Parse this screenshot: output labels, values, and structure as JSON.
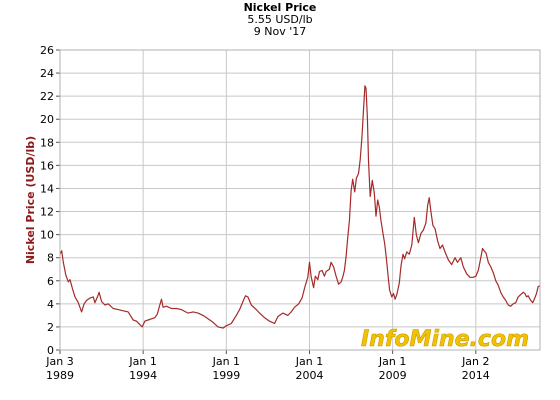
{
  "header": {
    "title": "Nickel Price",
    "subtitle": "5.55 USD/lb",
    "date": "9 Nov '17"
  },
  "watermark": "InfoMine.com",
  "colors": {
    "line": "#a52a2a",
    "grid": "#c8c8c8",
    "axis_label": "#8b1a1a",
    "watermark": "#f2c200"
  },
  "chart_data": {
    "type": "line",
    "title": "Nickel Price",
    "subtitle": "5.55 USD/lb",
    "ylabel": "Nickel Price (USD/lb)",
    "xlabel": "",
    "ylim": [
      0,
      26
    ],
    "yticks": [
      0,
      2,
      4,
      6,
      8,
      10,
      12,
      14,
      16,
      18,
      20,
      22,
      24,
      26
    ],
    "xlim": [
      1989.0,
      2017.86
    ],
    "xticks": [
      {
        "x": 1989.0,
        "line1": "Jan 3",
        "line2": "1989"
      },
      {
        "x": 1994.0,
        "line1": "Jan 1",
        "line2": "1994"
      },
      {
        "x": 1999.0,
        "line1": "Jan 1",
        "line2": "1999"
      },
      {
        "x": 2004.0,
        "line1": "Jan 1",
        "line2": "2004"
      },
      {
        "x": 2009.0,
        "line1": "Jan 1",
        "line2": "2009"
      },
      {
        "x": 2014.0,
        "line1": "Jan 2",
        "line2": "2014"
      }
    ],
    "grid": true,
    "series": [
      {
        "name": "",
        "points": [
          [
            1989.0,
            8.3
          ],
          [
            1989.1,
            8.6
          ],
          [
            1989.2,
            7.6
          ],
          [
            1989.35,
            6.5
          ],
          [
            1989.5,
            5.9
          ],
          [
            1989.6,
            6.1
          ],
          [
            1989.75,
            5.3
          ],
          [
            1989.9,
            4.6
          ],
          [
            1990.1,
            4.1
          ],
          [
            1990.3,
            3.3
          ],
          [
            1990.45,
            4.0
          ],
          [
            1990.6,
            4.3
          ],
          [
            1990.8,
            4.5
          ],
          [
            1991.0,
            4.6
          ],
          [
            1991.1,
            4.1
          ],
          [
            1991.25,
            4.6
          ],
          [
            1991.35,
            5.0
          ],
          [
            1991.5,
            4.2
          ],
          [
            1991.7,
            3.9
          ],
          [
            1991.9,
            4.0
          ],
          [
            1992.2,
            3.6
          ],
          [
            1992.5,
            3.5
          ],
          [
            1992.8,
            3.4
          ],
          [
            1993.1,
            3.3
          ],
          [
            1993.4,
            2.6
          ],
          [
            1993.6,
            2.5
          ],
          [
            1993.8,
            2.2
          ],
          [
            1993.95,
            2.0
          ],
          [
            1994.1,
            2.5
          ],
          [
            1994.3,
            2.6
          ],
          [
            1994.5,
            2.7
          ],
          [
            1994.7,
            2.8
          ],
          [
            1994.85,
            3.1
          ],
          [
            1995.0,
            3.9
          ],
          [
            1995.1,
            4.4
          ],
          [
            1995.2,
            3.7
          ],
          [
            1995.4,
            3.8
          ],
          [
            1995.7,
            3.6
          ],
          [
            1996.0,
            3.6
          ],
          [
            1996.3,
            3.5
          ],
          [
            1996.7,
            3.2
          ],
          [
            1997.0,
            3.3
          ],
          [
            1997.3,
            3.2
          ],
          [
            1997.6,
            3.0
          ],
          [
            1997.9,
            2.7
          ],
          [
            1998.2,
            2.4
          ],
          [
            1998.5,
            2.0
          ],
          [
            1998.8,
            1.9
          ],
          [
            1999.0,
            2.1
          ],
          [
            1999.3,
            2.3
          ],
          [
            1999.6,
            3.0
          ],
          [
            1999.8,
            3.5
          ],
          [
            2000.0,
            4.2
          ],
          [
            2000.15,
            4.7
          ],
          [
            2000.3,
            4.6
          ],
          [
            2000.5,
            3.9
          ],
          [
            2000.8,
            3.5
          ],
          [
            2001.0,
            3.2
          ],
          [
            2001.3,
            2.8
          ],
          [
            2001.6,
            2.5
          ],
          [
            2001.9,
            2.3
          ],
          [
            2002.1,
            2.9
          ],
          [
            2002.4,
            3.2
          ],
          [
            2002.7,
            3.0
          ],
          [
            2002.9,
            3.3
          ],
          [
            2003.1,
            3.7
          ],
          [
            2003.35,
            4.0
          ],
          [
            2003.55,
            4.5
          ],
          [
            2003.75,
            5.6
          ],
          [
            2003.9,
            6.3
          ],
          [
            2004.0,
            7.6
          ],
          [
            2004.1,
            6.4
          ],
          [
            2004.25,
            5.4
          ],
          [
            2004.35,
            6.4
          ],
          [
            2004.5,
            6.1
          ],
          [
            2004.6,
            6.8
          ],
          [
            2004.75,
            6.9
          ],
          [
            2004.9,
            6.4
          ],
          [
            2005.0,
            6.8
          ],
          [
            2005.2,
            7.0
          ],
          [
            2005.3,
            7.6
          ],
          [
            2005.45,
            7.2
          ],
          [
            2005.6,
            6.4
          ],
          [
            2005.75,
            5.7
          ],
          [
            2005.9,
            5.9
          ],
          [
            2006.0,
            6.3
          ],
          [
            2006.1,
            6.9
          ],
          [
            2006.2,
            8.1
          ],
          [
            2006.3,
            9.7
          ],
          [
            2006.4,
            11.2
          ],
          [
            2006.5,
            13.8
          ],
          [
            2006.6,
            14.8
          ],
          [
            2006.72,
            13.7
          ],
          [
            2006.82,
            14.9
          ],
          [
            2006.95,
            15.3
          ],
          [
            2007.05,
            16.5
          ],
          [
            2007.15,
            18.4
          ],
          [
            2007.25,
            20.8
          ],
          [
            2007.33,
            22.9
          ],
          [
            2007.4,
            22.7
          ],
          [
            2007.48,
            20.1
          ],
          [
            2007.55,
            16.4
          ],
          [
            2007.65,
            13.3
          ],
          [
            2007.78,
            14.7
          ],
          [
            2007.9,
            13.6
          ],
          [
            2008.0,
            11.6
          ],
          [
            2008.1,
            13.0
          ],
          [
            2008.2,
            12.4
          ],
          [
            2008.3,
            11.2
          ],
          [
            2008.42,
            10.1
          ],
          [
            2008.52,
            9.2
          ],
          [
            2008.62,
            8.0
          ],
          [
            2008.72,
            6.5
          ],
          [
            2008.82,
            5.2
          ],
          [
            2008.95,
            4.6
          ],
          [
            2009.05,
            4.9
          ],
          [
            2009.15,
            4.4
          ],
          [
            2009.25,
            4.8
          ],
          [
            2009.4,
            5.8
          ],
          [
            2009.5,
            7.3
          ],
          [
            2009.62,
            8.3
          ],
          [
            2009.72,
            7.9
          ],
          [
            2009.85,
            8.5
          ],
          [
            2010.0,
            8.3
          ],
          [
            2010.15,
            9.1
          ],
          [
            2010.3,
            11.5
          ],
          [
            2010.42,
            10.0
          ],
          [
            2010.55,
            9.3
          ],
          [
            2010.7,
            10.1
          ],
          [
            2010.85,
            10.4
          ],
          [
            2011.0,
            11.0
          ],
          [
            2011.1,
            12.5
          ],
          [
            2011.2,
            13.2
          ],
          [
            2011.3,
            12.0
          ],
          [
            2011.42,
            10.8
          ],
          [
            2011.55,
            10.5
          ],
          [
            2011.7,
            9.5
          ],
          [
            2011.85,
            8.8
          ],
          [
            2012.0,
            9.1
          ],
          [
            2012.15,
            8.5
          ],
          [
            2012.35,
            7.8
          ],
          [
            2012.55,
            7.4
          ],
          [
            2012.75,
            8.0
          ],
          [
            2012.9,
            7.6
          ],
          [
            2013.1,
            8.0
          ],
          [
            2013.25,
            7.2
          ],
          [
            2013.45,
            6.6
          ],
          [
            2013.65,
            6.3
          ],
          [
            2013.85,
            6.3
          ],
          [
            2014.0,
            6.4
          ],
          [
            2014.15,
            6.9
          ],
          [
            2014.3,
            8.0
          ],
          [
            2014.4,
            8.8
          ],
          [
            2014.5,
            8.6
          ],
          [
            2014.62,
            8.4
          ],
          [
            2014.75,
            7.6
          ],
          [
            2014.9,
            7.2
          ],
          [
            2015.05,
            6.7
          ],
          [
            2015.2,
            6.0
          ],
          [
            2015.35,
            5.6
          ],
          [
            2015.5,
            5.0
          ],
          [
            2015.65,
            4.6
          ],
          [
            2015.8,
            4.3
          ],
          [
            2015.95,
            3.9
          ],
          [
            2016.1,
            3.8
          ],
          [
            2016.25,
            4.0
          ],
          [
            2016.4,
            4.1
          ],
          [
            2016.55,
            4.6
          ],
          [
            2016.7,
            4.8
          ],
          [
            2016.85,
            5.0
          ],
          [
            2016.95,
            4.9
          ],
          [
            2017.05,
            4.6
          ],
          [
            2017.15,
            4.7
          ],
          [
            2017.3,
            4.3
          ],
          [
            2017.42,
            4.1
          ],
          [
            2017.55,
            4.5
          ],
          [
            2017.65,
            4.9
          ],
          [
            2017.75,
            5.5
          ],
          [
            2017.86,
            5.55
          ]
        ]
      }
    ]
  }
}
